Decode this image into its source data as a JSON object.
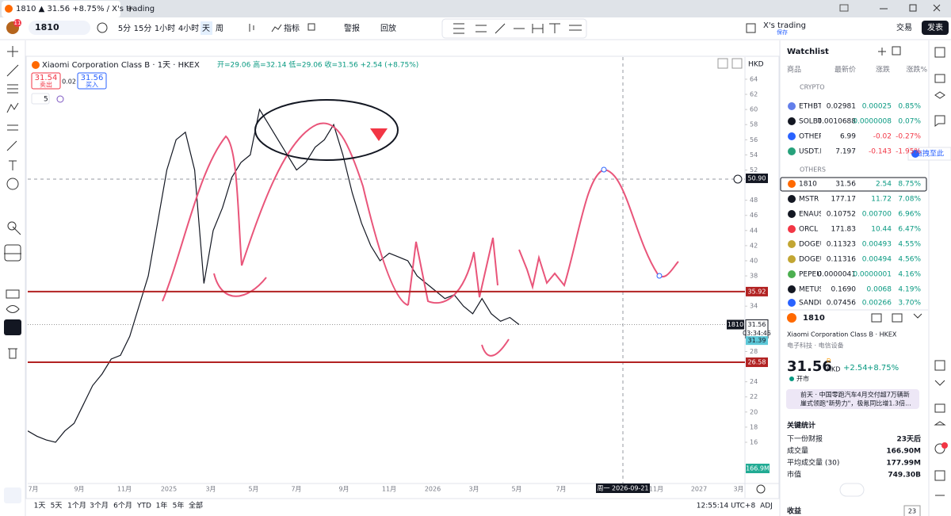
{
  "tab": {
    "title": "1810 ▲ 31.56 +8.75% / X's trading",
    "badge": "11"
  },
  "toolbar": {
    "symbol": "1810",
    "intervals": [
      "5分",
      "15分",
      "1小时",
      "4小时",
      "天",
      "周"
    ],
    "indicators": "指标",
    "alerts": "警报",
    "replay": "回放",
    "layout_name": "X's trading",
    "layout_state": "保存",
    "trade": "交易",
    "publish": "发表"
  },
  "legend": {
    "title": "Xiaomi Corporation Class B · 1天 · HKEX",
    "ohlc": "开=29.06 高=32.14 低=29.06 收=31.56 +2.54 (+8.75%)",
    "sell_price": "31.54",
    "sell": "卖出",
    "spread": "0.02",
    "buy_price": "31.56",
    "buy": "买入",
    "indicator_count": "5"
  },
  "chart": {
    "currency": "HKD",
    "ylim": [
      10.55,
      66.93
    ],
    "yticks": [
      64,
      62,
      60,
      58,
      56,
      54,
      52,
      48,
      46,
      44,
      42,
      40,
      38,
      34,
      28,
      24,
      22,
      20,
      18,
      16
    ],
    "xlabels": [
      "7月",
      "9月",
      "11月",
      "2025",
      "3月",
      "5月",
      "7月",
      "9月",
      "11月",
      "2026",
      "3月",
      "5月",
      "7月",
      "11月",
      "2027",
      "3月"
    ],
    "levels": [
      {
        "value": 50.9,
        "label": "50.90"
      },
      {
        "value": 35.92,
        "label": "35.92"
      },
      {
        "value": 26.58,
        "label": "26.58"
      }
    ],
    "last": {
      "value": 31.56,
      "label": "31.56",
      "countdown": "03:34:45",
      "symbol": "1810"
    },
    "ma": {
      "value": 31.39,
      "label": "31.39"
    },
    "volume_label": "166.9M",
    "crosshair_date": "周一 2026-09-21",
    "closes": [
      17.5,
      16.8,
      16.3,
      16.0,
      17.5,
      18.5,
      21,
      23.5,
      25,
      27,
      27.5,
      30,
      34,
      38,
      45,
      52,
      56,
      57,
      52,
      37,
      44,
      47,
      51,
      53,
      54,
      60,
      58,
      56,
      54,
      52,
      53,
      55,
      56,
      58,
      54,
      49,
      45,
      42,
      40,
      41,
      40.5,
      40,
      38,
      37,
      36,
      35,
      35.5,
      34,
      33,
      35,
      33,
      32,
      32.5,
      31.56
    ]
  },
  "bottom": {
    "ranges": [
      "1天",
      "5天",
      "1个月",
      "3个月",
      "6个月",
      "YTD",
      "1年",
      "5年",
      "全部"
    ],
    "time": "12:55:14 UTC+8",
    "adj": "ADJ"
  },
  "watchlist": {
    "title": "Watchlist",
    "columns": [
      "商品",
      "最新价",
      "涨跌",
      "涨跌%"
    ],
    "sections": [
      "CRYPTO",
      "OTHERS"
    ],
    "drag_hint": "拖拽至此",
    "crypto": [
      [
        "ETHBTC",
        "0.02981",
        "0.00025",
        "0.85%"
      ],
      [
        "SOLBTC",
        "0.0010688",
        "0.0000008",
        "0.07%"
      ],
      [
        "OTHERS",
        "6.99",
        "-0.02",
        "-0.27%"
      ],
      [
        "USDT.D",
        "7.197",
        "-0.143",
        "-1.95%"
      ]
    ],
    "others": [
      [
        "1810",
        "31.56",
        "2.54",
        "8.75%"
      ],
      [
        "MSTR",
        "177.17",
        "11.72",
        "7.08%"
      ],
      [
        "ENAUSD",
        "0.10752",
        "0.00700",
        "6.96%"
      ],
      [
        "ORCL",
        "171.83",
        "10.44",
        "6.47%"
      ],
      [
        "DOGEUSD",
        "0.11323",
        "0.00493",
        "4.55%"
      ],
      [
        "DOGEUSDT",
        "0.11316",
        "0.00494",
        "4.56%"
      ],
      [
        "PEPEUSD",
        "0.0000041",
        "0.0000001",
        "4.16%"
      ],
      [
        "METUSD",
        "0.1690",
        "0.0068",
        "4.19%"
      ],
      [
        "SANDUSD",
        "0.07456",
        "0.00266",
        "3.70%"
      ]
    ]
  },
  "detail": {
    "symbol": "1810",
    "name": "Xiaomi Corporation Class B · HKEX",
    "sector": "电子科技 · 电信设备",
    "price": "31.56",
    "flag": "D",
    "currency": "HKD",
    "change": "+2.54",
    "change_pct": "+8.75%",
    "status": "开市",
    "news": [
      "前天 · 中国零跑汽车4月交付超7万辆新",
      "崖式领跑\"新势力\"，极氪同比增1.3倍..."
    ],
    "stats_title": "关键统计",
    "stats": [
      [
        "下一份财报",
        "23天后"
      ],
      [
        "成交量",
        "166.90M"
      ],
      [
        "平均成交量 (30)",
        "177.99M"
      ],
      [
        "市值",
        "749.30B"
      ]
    ],
    "earnings": "收益",
    "earnings_count": "23"
  }
}
